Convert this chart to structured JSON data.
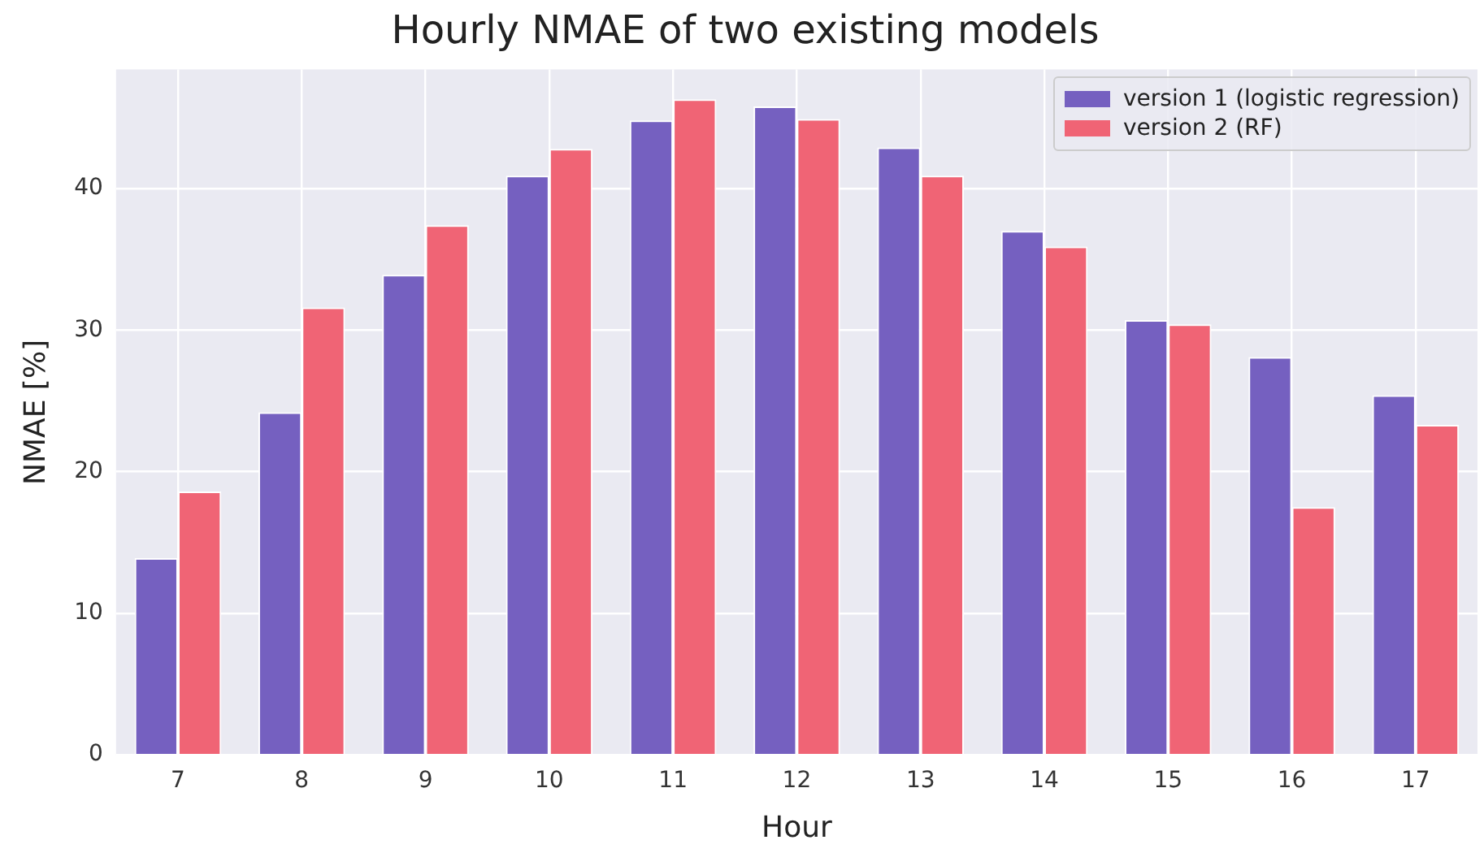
{
  "chart_data": {
    "type": "bar",
    "title": "Hourly NMAE of two existing models",
    "xlabel": "Hour",
    "ylabel": "NMAE [%]",
    "categories": [
      "7",
      "8",
      "9",
      "10",
      "11",
      "12",
      "13",
      "14",
      "15",
      "16",
      "17"
    ],
    "series": [
      {
        "name": "version 1 (logistic regression)",
        "color": "#7560c0",
        "values": [
          13.9,
          24.2,
          33.9,
          40.9,
          44.8,
          45.8,
          42.9,
          37.0,
          30.7,
          28.1,
          25.4
        ]
      },
      {
        "name": "version 2 (RF)",
        "color": "#f06475",
        "values": [
          18.6,
          31.6,
          37.4,
          42.8,
          46.3,
          44.9,
          40.9,
          35.9,
          30.4,
          17.5,
          23.3
        ]
      }
    ],
    "ylim": [
      0,
      48.4
    ],
    "yticks": [
      0,
      10,
      20,
      30,
      40
    ],
    "grid": true,
    "legend": "top right"
  }
}
